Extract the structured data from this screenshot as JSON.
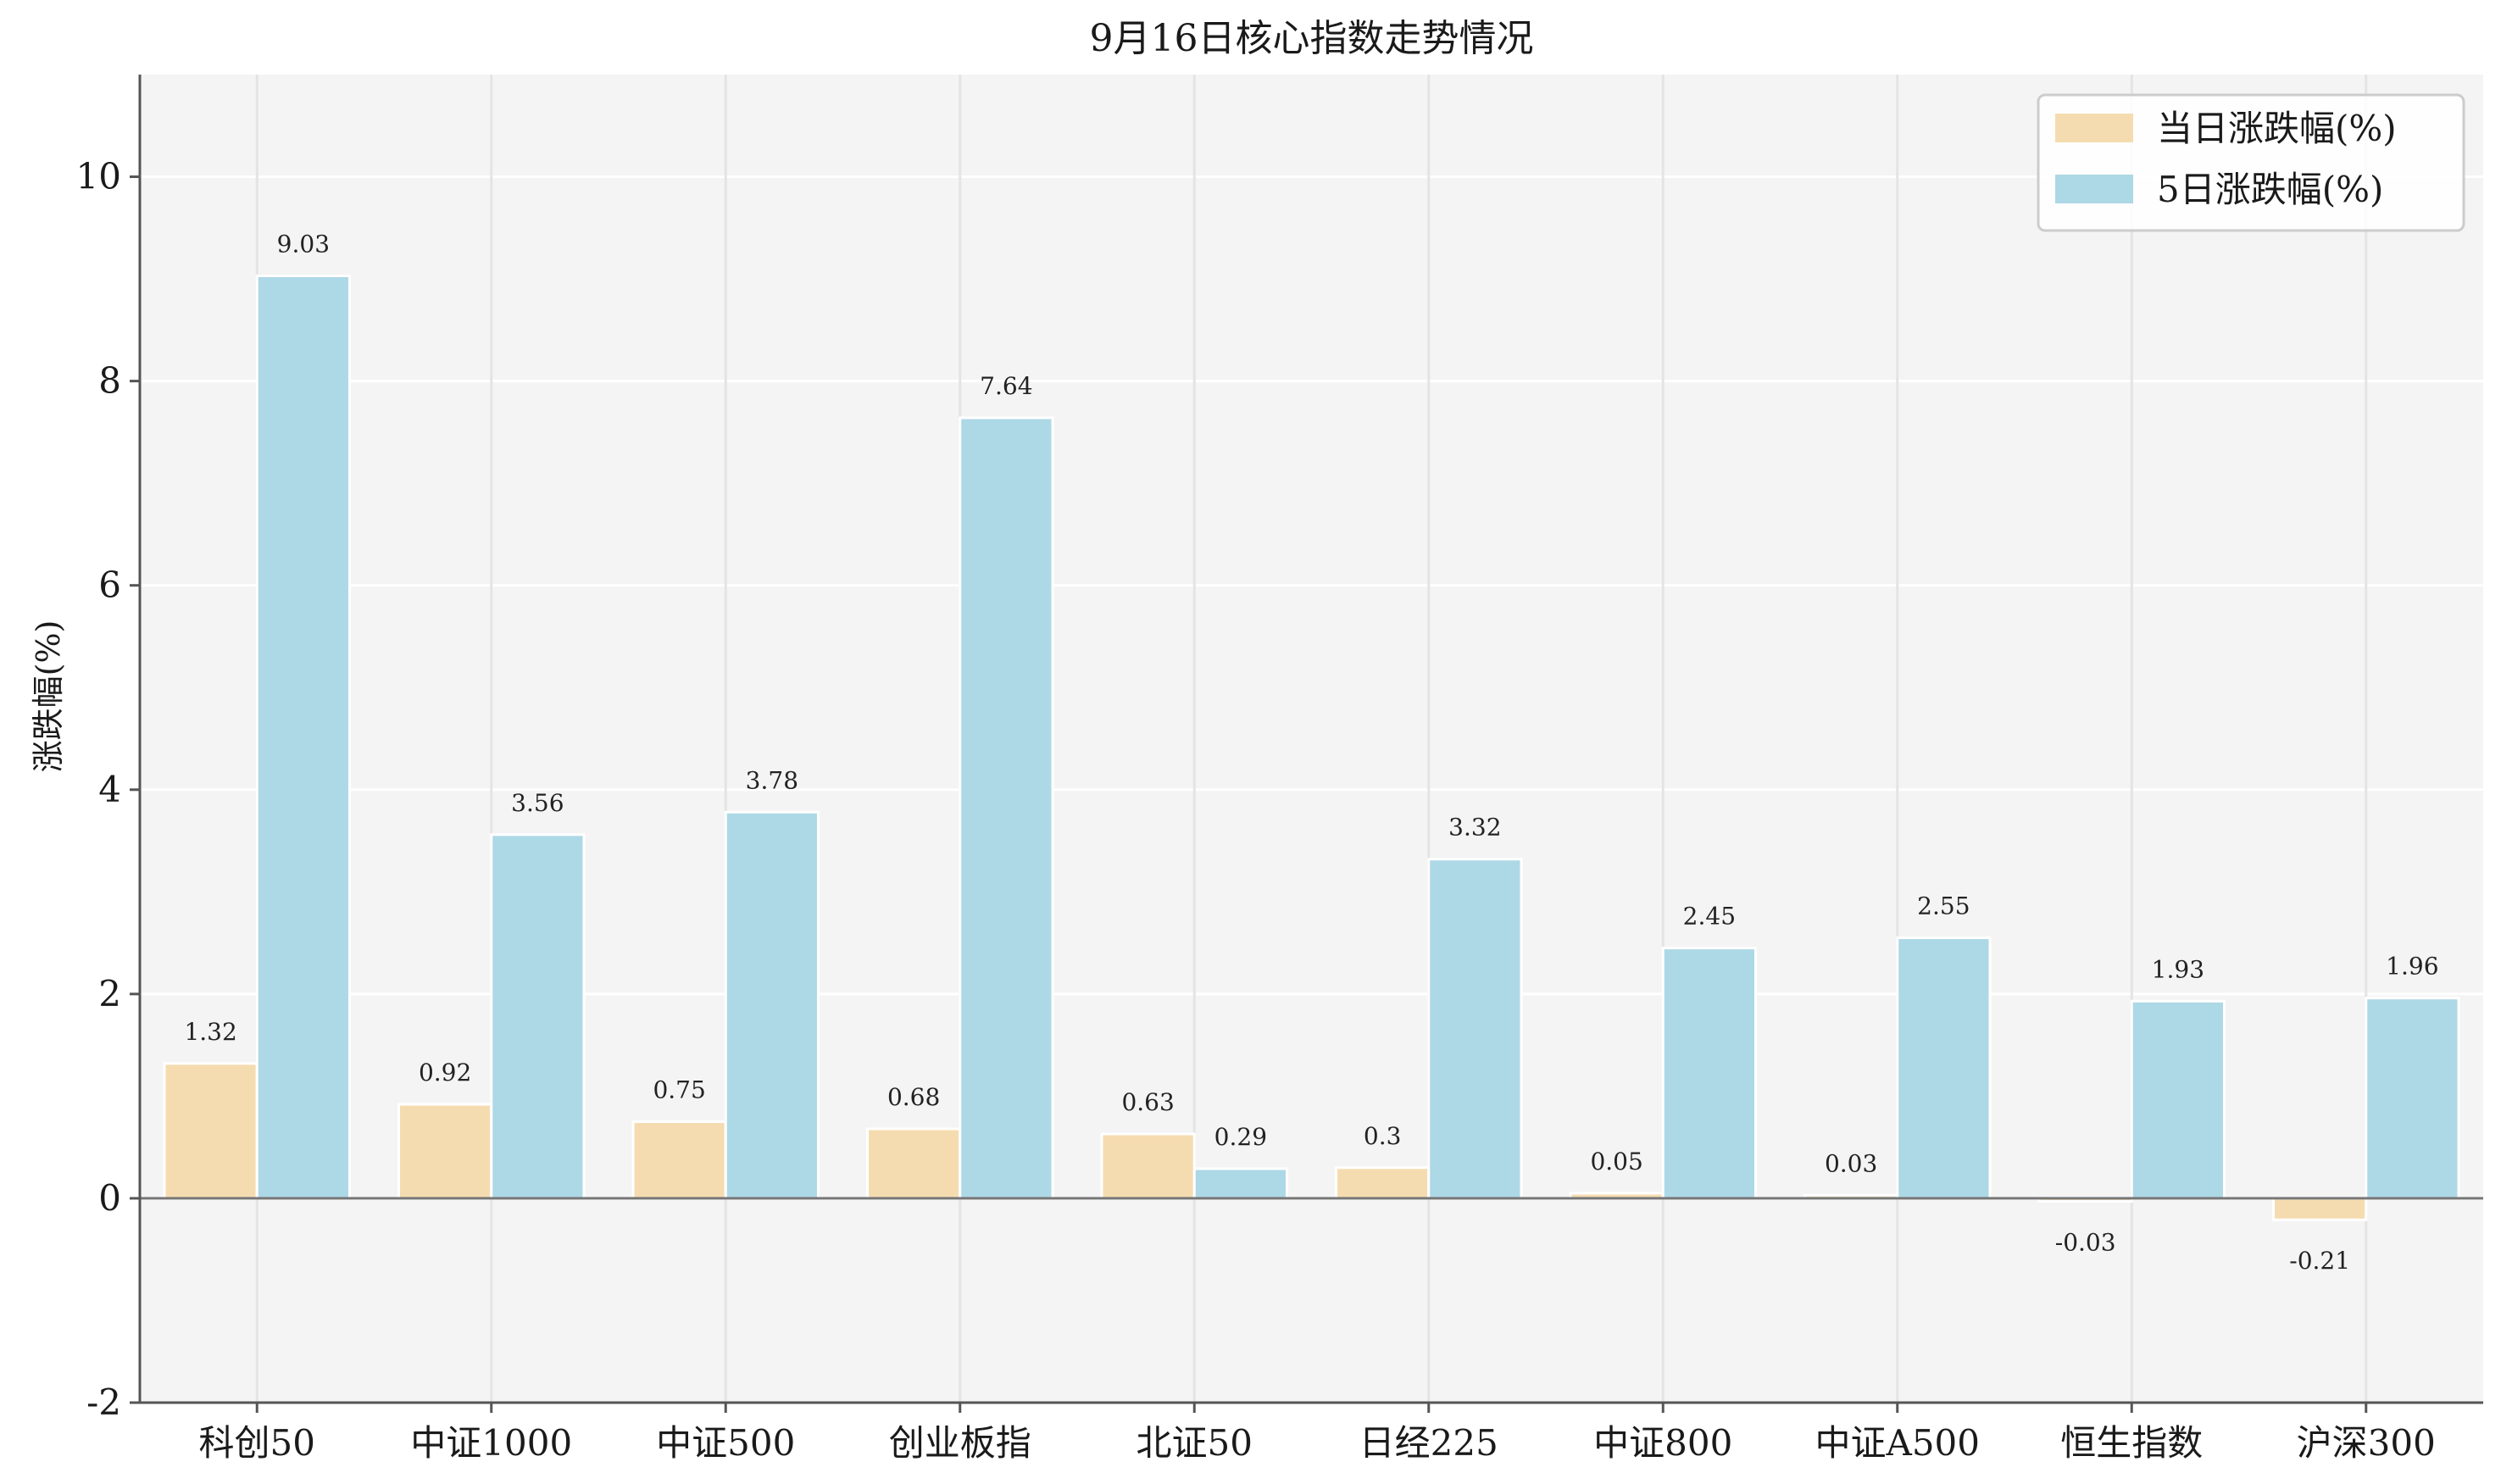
{
  "chart_data": {
    "type": "bar",
    "title": "9月16日核心指数走势情况",
    "xlabel": "",
    "ylabel": "涨跌幅(%)",
    "ylim": [
      -2,
      11
    ],
    "yticks": [
      -2,
      0,
      2,
      4,
      6,
      8,
      10
    ],
    "grid": true,
    "legend_position": "top-right",
    "categories": [
      "科创50",
      "中证1000",
      "中证500",
      "创业板指",
      "北证50",
      "日经225",
      "中证800",
      "中证A500",
      "恒生指数",
      "沪深300"
    ],
    "series": [
      {
        "name": "当日涨跌幅(%)",
        "color": "#f5dcb0",
        "values": [
          1.32,
          0.92,
          0.75,
          0.68,
          0.63,
          0.3,
          0.05,
          0.03,
          -0.03,
          -0.21
        ],
        "labels": [
          "1.32",
          "0.92",
          "0.75",
          "0.68",
          "0.63",
          "0.3",
          "0.05",
          "0.03",
          "-0.03",
          "-0.21"
        ]
      },
      {
        "name": "5日涨跌幅(%)",
        "color": "#add8e6",
        "values": [
          9.03,
          3.56,
          3.78,
          7.64,
          0.29,
          3.32,
          2.45,
          2.55,
          1.93,
          1.96
        ],
        "labels": [
          "9.03",
          "3.56",
          "3.78",
          "7.64",
          "0.29",
          "3.32",
          "2.45",
          "2.55",
          "1.93",
          "1.96"
        ]
      }
    ]
  }
}
